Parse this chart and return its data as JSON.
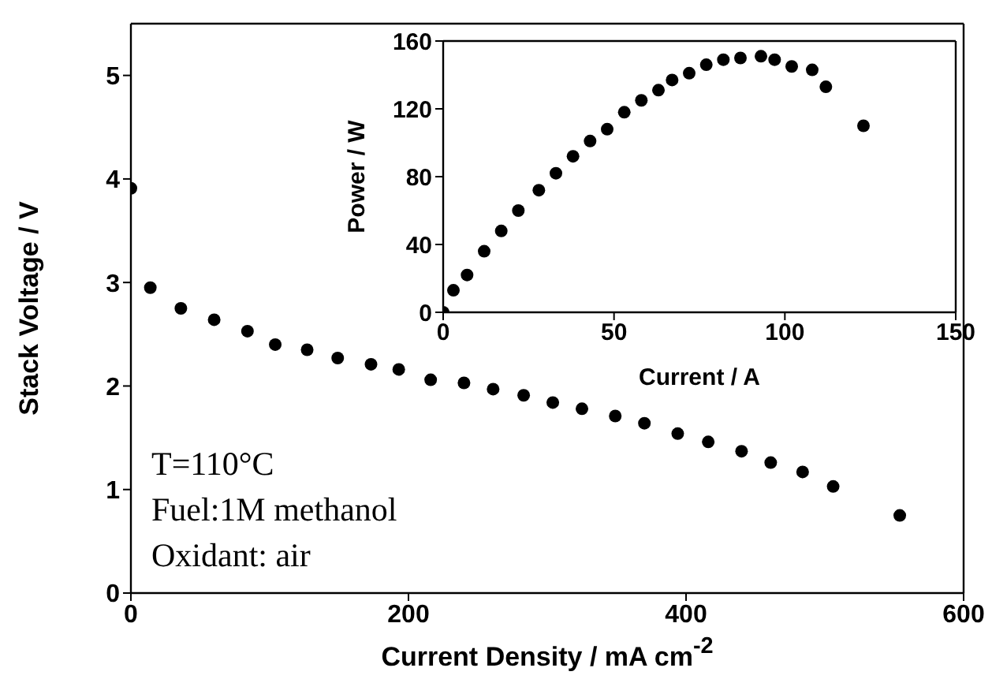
{
  "chart_data": [
    {
      "type": "scatter",
      "xlabel": "Current Density / mA cm$^{-2}$",
      "ylabel": "Stack Voltage / V",
      "xlim": [
        0,
        600
      ],
      "xticks": [
        0,
        200,
        400,
        600
      ],
      "ylim": [
        0,
        5.5
      ],
      "yticks": [
        0,
        1,
        2,
        3,
        4,
        5
      ],
      "marker": "circle",
      "annotations": [
        "T=110°C",
        "Fuel:1M methanol",
        "Oxidant: air"
      ],
      "series": [
        {
          "color": "#000000",
          "x": [
            0,
            14,
            36,
            60,
            84,
            104,
            127,
            149,
            173,
            193,
            216,
            240,
            261,
            283,
            304,
            325,
            349,
            370,
            394,
            416,
            440,
            461,
            484,
            506,
            554
          ],
          "values": [
            3.91,
            2.95,
            2.75,
            2.64,
            2.53,
            2.4,
            2.35,
            2.27,
            2.21,
            2.16,
            2.06,
            2.03,
            1.97,
            1.91,
            1.84,
            1.78,
            1.71,
            1.64,
            1.54,
            1.46,
            1.37,
            1.26,
            1.17,
            1.03,
            0.75
          ]
        }
      ]
    },
    {
      "type": "scatter",
      "xlabel": "Current / A",
      "ylabel": "Power / W",
      "xlim": [
        0,
        150
      ],
      "xticks": [
        0,
        50,
        100,
        150
      ],
      "ylim": [
        0,
        160
      ],
      "yticks": [
        0,
        40,
        80,
        120,
        160
      ],
      "marker": "circle",
      "series": [
        {
          "color": "#000000",
          "x": [
            0,
            3,
            7,
            12,
            17,
            22,
            28,
            33,
            38,
            43,
            48,
            53,
            58,
            63,
            67,
            72,
            77,
            82,
            87,
            93,
            97,
            102,
            108,
            112,
            123
          ],
          "values": [
            0,
            13,
            22,
            36,
            48,
            60,
            72,
            82,
            92,
            101,
            108,
            118,
            125,
            131,
            137,
            141,
            146,
            149,
            150,
            151,
            149,
            145,
            143,
            133,
            110
          ]
        }
      ]
    }
  ]
}
